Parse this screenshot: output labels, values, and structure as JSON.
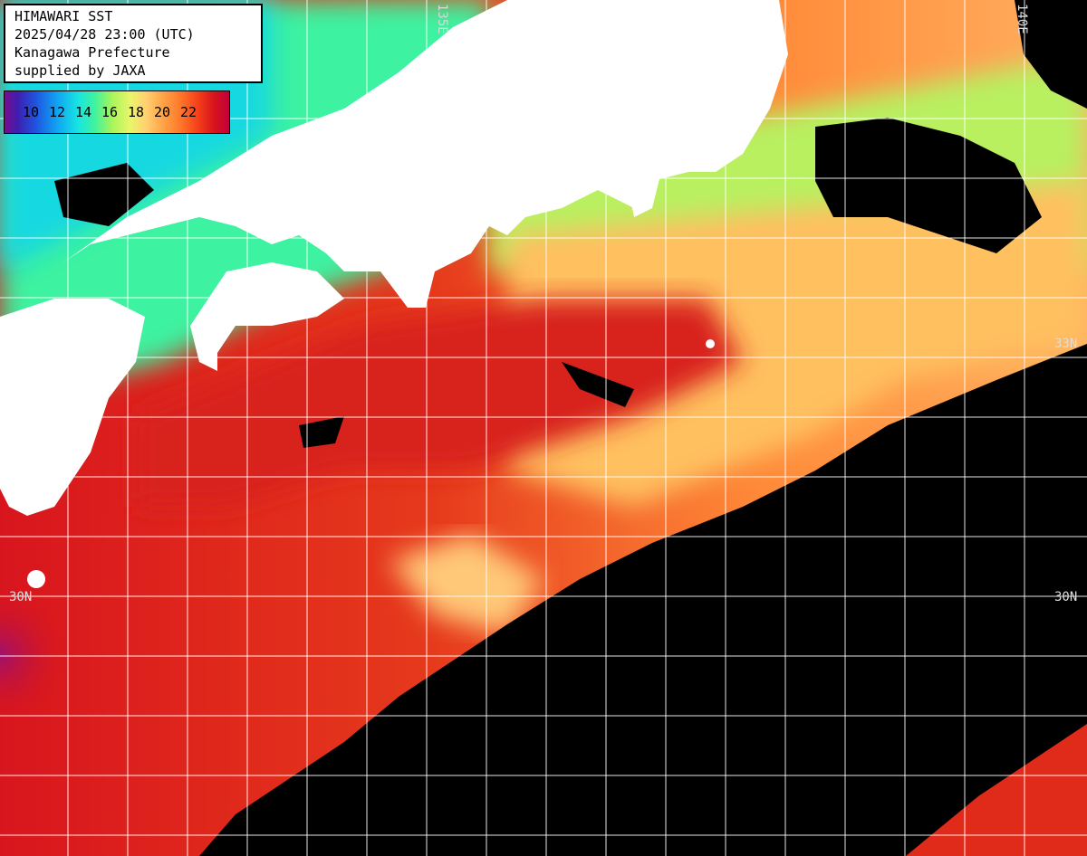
{
  "title_block": {
    "line1": "HIMAWARI SST",
    "line2": "2025/04/28 23:00 (UTC)",
    "line3": "Kanagawa Prefecture",
    "line4": "supplied by JAXA"
  },
  "legend": {
    "unit": "",
    "ticks": [
      "10",
      "12",
      "14",
      "16",
      "18",
      "20",
      "22"
    ]
  },
  "grid_labels": {
    "lat_33_left": "",
    "lat_33_right": "33N",
    "lat_30_left": "30N",
    "lat_30_right": "30N",
    "lon_top_1": "135E",
    "lon_top_2": "140E"
  },
  "colors": {
    "land": "#ffffff",
    "no_data": "#000000",
    "sst_warm": "#e02a1a",
    "sst_hot": "#c0103a",
    "sst_mid": "#ff9a40",
    "sst_cool": "#ffd070",
    "coastal_green": "#a8f55a",
    "coastal_cyan": "#20d8d8"
  }
}
